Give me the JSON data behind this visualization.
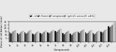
{
  "legend_labels": [
    "E. coli",
    "S. flexneri",
    "P. aeruginosa",
    "S. typhi",
    "S. aureus",
    "B. subtilis"
  ],
  "bar_colors": [
    "#1a1a1a",
    "#555555",
    "#888888",
    "#aaaaaa",
    "#cccccc",
    "#eeeeee"
  ],
  "bar_edge_colors": [
    "#000000",
    "#000000",
    "#000000",
    "#000000",
    "#000000",
    "#000000"
  ],
  "compounds": [
    "c1",
    "c2",
    "c3",
    "c4",
    "c5",
    "c6",
    "c7",
    "c8",
    "c9",
    "c10",
    "c11",
    "c12",
    "c13",
    "c14"
  ],
  "xlabel": "Compounds",
  "ylabel": "Zone of inhibition (mm)",
  "ylim": [
    0,
    30
  ],
  "yticks": [
    5,
    10,
    15,
    20,
    25,
    30
  ],
  "data": [
    [
      14,
      13,
      14,
      12,
      13,
      14,
      16,
      13,
      12,
      15,
      14,
      13,
      15,
      23
    ],
    [
      12,
      11,
      12,
      10,
      11,
      12,
      14,
      11,
      10,
      13,
      12,
      11,
      13,
      21
    ],
    [
      13,
      12,
      13,
      11,
      12,
      13,
      15,
      12,
      11,
      14,
      13,
      12,
      14,
      22
    ],
    [
      15,
      14,
      15,
      13,
      14,
      15,
      17,
      14,
      13,
      16,
      15,
      14,
      16,
      24
    ],
    [
      16,
      15,
      16,
      14,
      15,
      16,
      18,
      15,
      14,
      17,
      16,
      15,
      17,
      25
    ],
    [
      17,
      16,
      17,
      15,
      16,
      17,
      19,
      16,
      15,
      18,
      17,
      16,
      18,
      27
    ]
  ],
  "bg_color": "#e8e8e8",
  "title_fontsize": 3.5,
  "axis_fontsize": 2.8,
  "tick_fontsize": 2.3,
  "legend_fontsize": 2.0
}
